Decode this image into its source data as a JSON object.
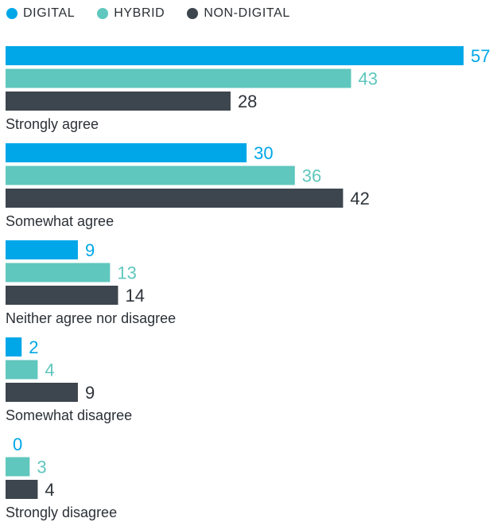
{
  "chart_data": {
    "type": "bar",
    "orientation": "horizontal",
    "categories": [
      "Strongly agree",
      "Somewhat agree",
      "Neither agree nor disagree",
      "Somewhat disagree",
      "Strongly disagree"
    ],
    "series": [
      {
        "name": "DIGITAL",
        "color": "#00a7e8",
        "values": [
          57,
          30,
          9,
          2,
          0
        ]
      },
      {
        "name": "HYBRID",
        "color": "#5fc7bd",
        "values": [
          43,
          36,
          13,
          4,
          3
        ]
      },
      {
        "name": "NON-DIGITAL",
        "color": "#3d454e",
        "values": [
          28,
          42,
          14,
          9,
          4
        ]
      }
    ],
    "legend_position": "top-left",
    "grid": false,
    "xlim": [
      0,
      57
    ]
  }
}
